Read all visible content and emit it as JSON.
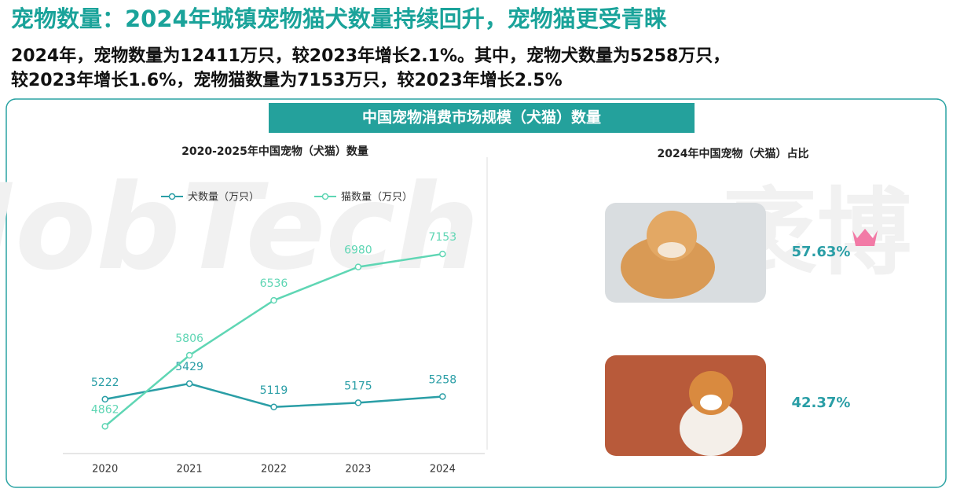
{
  "header": {
    "title": "宠物数量：2024年城镇宠物猫犬数量持续回升，宠物猫更受青睐",
    "subtitle": [
      "2024年，宠物数量为12411万只，较2023年增长2.1%。其中，宠物犬数量为5258万只，",
      "较2023年增长1.6%，宠物猫数量为7153万只，较2023年增长2.5%"
    ]
  },
  "banner": "中国宠物消费市场规模（犬猫）数量",
  "watermark": [
    "MobTech",
    "袤博"
  ],
  "chart_data": [
    {
      "type": "line",
      "title": "2020-2025年中国宠物（犬猫）数量",
      "categories": [
        "2020",
        "2021",
        "2022",
        "2023",
        "2024"
      ],
      "series": [
        {
          "name": "犬数量（万只）",
          "color": "#2a9ea6",
          "values": [
            5222,
            5429,
            5119,
            5175,
            5258
          ]
        },
        {
          "name": "猫数量（万只）",
          "color": "#5fd6b4",
          "values": [
            4862,
            5806,
            6536,
            6980,
            7153
          ]
        }
      ],
      "ylim": [
        4500,
        8000
      ]
    },
    {
      "type": "share",
      "title": "2024年中国宠物（犬猫）占比",
      "values": [
        57.63,
        42.37
      ],
      "value_labels": [
        "57.63%",
        "42.37%"
      ],
      "color": "#2a9ea6"
    }
  ]
}
